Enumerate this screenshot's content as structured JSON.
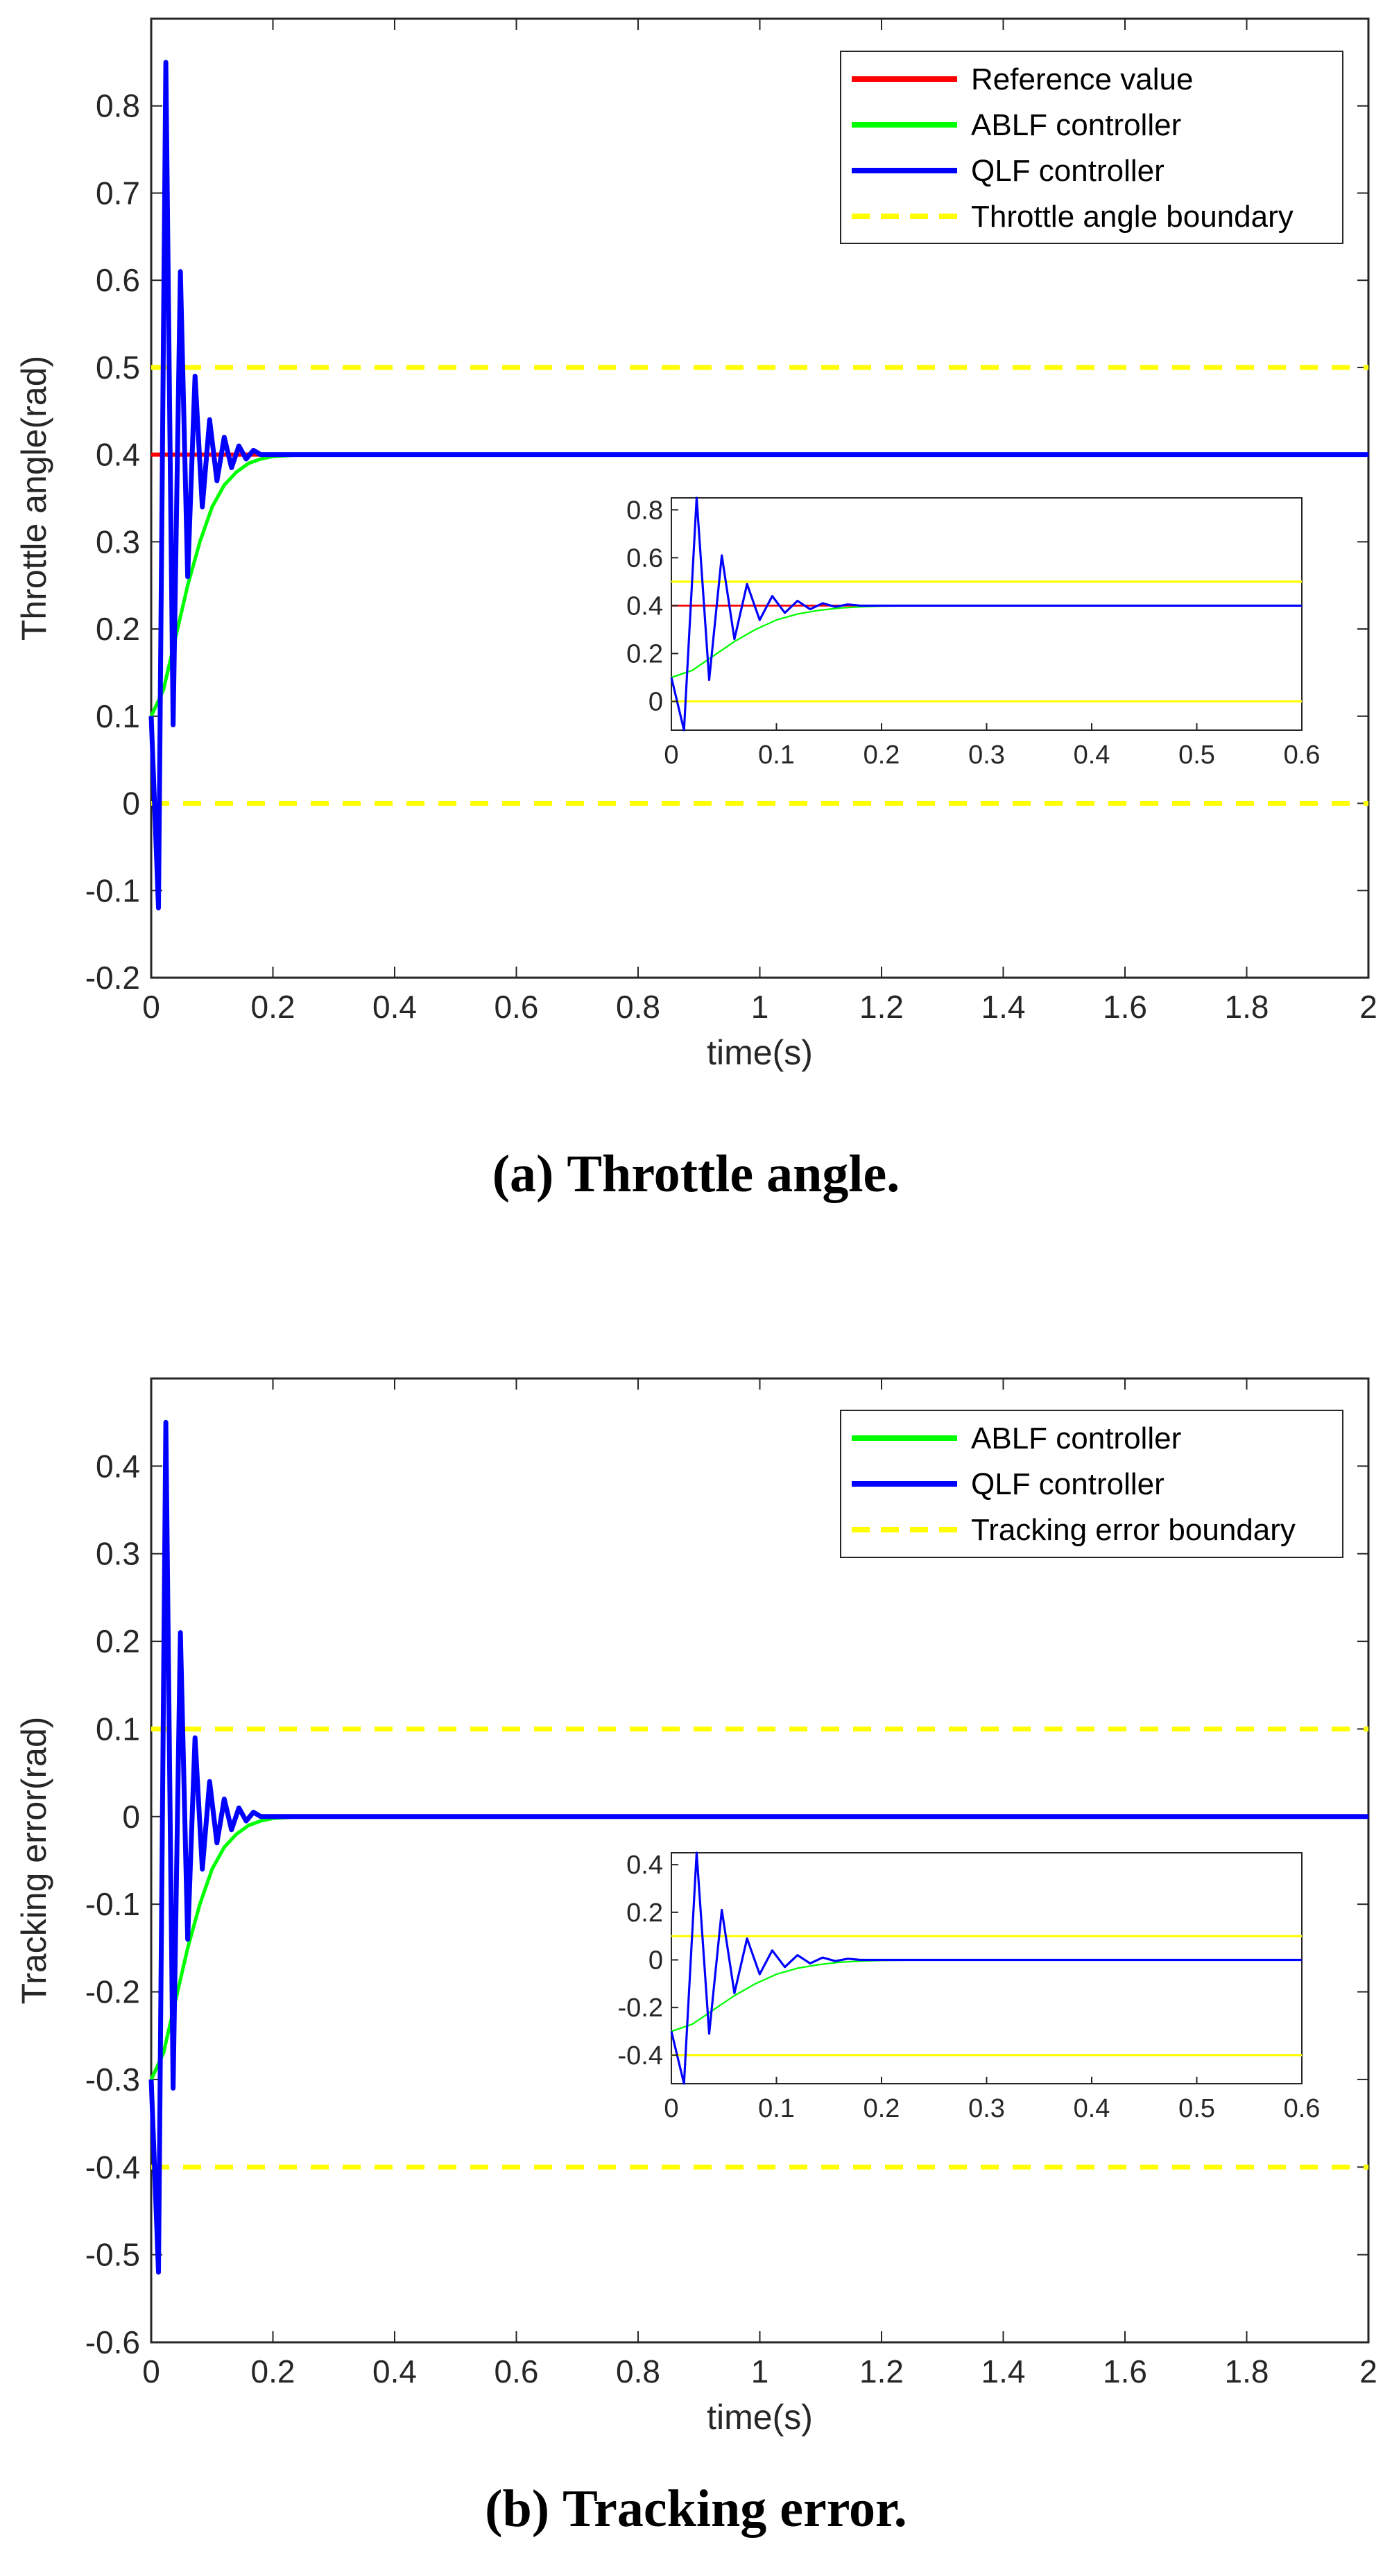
{
  "figures": [
    {
      "caption": {
        "label": "(a)",
        "text": "Throttle angle."
      }
    },
    {
      "caption": {
        "label": "(b)",
        "text": "Tracking error."
      }
    }
  ],
  "colors": {
    "reference": "#ff0000",
    "ablf": "#00ff00",
    "qlf": "#0000ff",
    "boundary": "#ffff00",
    "axis": "#262626"
  },
  "chart_data": [
    {
      "type": "line",
      "title": "",
      "xlabel": "time(s)",
      "ylabel": "Throttle angle(rad)",
      "xlim": [
        0,
        2
      ],
      "ylim": [
        -0.2,
        0.9
      ],
      "xticks": [
        "0",
        "0.2",
        "0.4",
        "0.6",
        "0.8",
        "1",
        "1.2",
        "1.4",
        "1.6",
        "1.8",
        "2"
      ],
      "yticks": [
        "-0.2",
        "-0.1",
        "0",
        "0.1",
        "0.2",
        "0.3",
        "0.4",
        "0.5",
        "0.6",
        "0.7",
        "0.8"
      ],
      "legend": [
        "Reference value",
        "ABLF controller",
        "QLF controller",
        "Throttle angle boundary"
      ],
      "legend_position": "top-right",
      "series": [
        {
          "name": "Reference value",
          "x": [
            0,
            2
          ],
          "y": [
            0.4,
            0.4
          ]
        },
        {
          "name": "ABLF controller",
          "x": [
            0,
            0.02,
            0.04,
            0.06,
            0.08,
            0.1,
            0.12,
            0.14,
            0.16,
            0.18,
            0.2,
            0.25,
            2
          ],
          "y": [
            0.1,
            0.13,
            0.19,
            0.25,
            0.3,
            0.34,
            0.365,
            0.38,
            0.39,
            0.395,
            0.398,
            0.4,
            0.4
          ]
        },
        {
          "name": "QLF controller",
          "x": [
            0,
            0.012,
            0.024,
            0.036,
            0.048,
            0.06,
            0.072,
            0.084,
            0.096,
            0.108,
            0.12,
            0.132,
            0.144,
            0.156,
            0.168,
            0.18,
            0.2,
            2
          ],
          "y": [
            0.1,
            -0.12,
            0.85,
            0.09,
            0.61,
            0.26,
            0.49,
            0.34,
            0.44,
            0.37,
            0.42,
            0.385,
            0.41,
            0.395,
            0.405,
            0.4,
            0.4,
            0.4
          ]
        },
        {
          "name": "Throttle angle boundary",
          "upper": 0.5,
          "lower": 0.0
        }
      ],
      "inset": {
        "xlim": [
          0,
          0.6
        ],
        "ylim": [
          -0.12,
          0.85
        ],
        "xticks": [
          "0",
          "0.1",
          "0.2",
          "0.3",
          "0.4",
          "0.5",
          "0.6"
        ],
        "yticks": [
          "0",
          "0.2",
          "0.4",
          "0.6",
          "0.8"
        ]
      }
    },
    {
      "type": "line",
      "title": "",
      "xlabel": "time(s)",
      "ylabel": "Tracking error(rad)",
      "xlim": [
        0,
        2
      ],
      "ylim": [
        -0.6,
        0.5
      ],
      "xticks": [
        "0",
        "0.2",
        "0.4",
        "0.6",
        "0.8",
        "1",
        "1.2",
        "1.4",
        "1.6",
        "1.8",
        "2"
      ],
      "yticks": [
        "-0.6",
        "-0.5",
        "-0.4",
        "-0.3",
        "-0.2",
        "-0.1",
        "0",
        "0.1",
        "0.2",
        "0.3",
        "0.4"
      ],
      "legend": [
        "ABLF controller",
        "QLF controller",
        "Tracking error boundary"
      ],
      "legend_position": "top-right",
      "series": [
        {
          "name": "ABLF controller",
          "x": [
            0,
            0.02,
            0.04,
            0.06,
            0.08,
            0.1,
            0.12,
            0.14,
            0.16,
            0.18,
            0.2,
            0.25,
            2
          ],
          "y": [
            -0.3,
            -0.27,
            -0.21,
            -0.15,
            -0.1,
            -0.06,
            -0.035,
            -0.02,
            -0.01,
            -0.005,
            -0.002,
            0,
            0
          ]
        },
        {
          "name": "QLF controller",
          "x": [
            0,
            0.012,
            0.024,
            0.036,
            0.048,
            0.06,
            0.072,
            0.084,
            0.096,
            0.108,
            0.12,
            0.132,
            0.144,
            0.156,
            0.168,
            0.18,
            0.2,
            2
          ],
          "y": [
            -0.3,
            -0.52,
            0.45,
            -0.31,
            0.21,
            -0.14,
            0.09,
            -0.06,
            0.04,
            -0.03,
            0.02,
            -0.015,
            0.01,
            -0.005,
            0.005,
            0,
            0,
            0
          ]
        },
        {
          "name": "Tracking error boundary",
          "upper": 0.1,
          "lower": -0.4
        }
      ],
      "inset": {
        "xlim": [
          0,
          0.6
        ],
        "ylim": [
          -0.52,
          0.45
        ],
        "xticks": [
          "0",
          "0.1",
          "0.2",
          "0.3",
          "0.4",
          "0.5",
          "0.6"
        ],
        "yticks": [
          "-0.4",
          "-0.2",
          "0",
          "0.2",
          "0.4"
        ]
      }
    }
  ]
}
